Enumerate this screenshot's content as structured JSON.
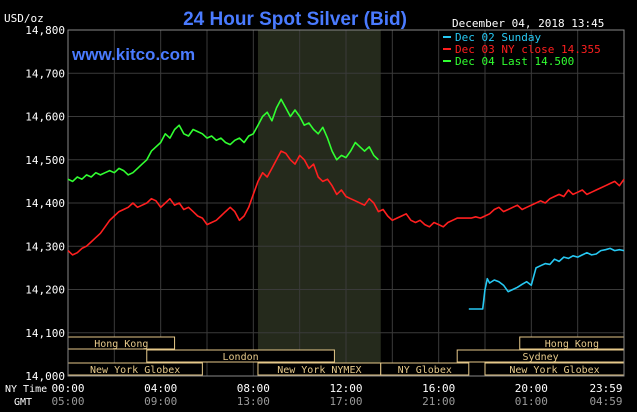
{
  "chart_data": {
    "type": "line",
    "title": "24 Hour Spot Silver (Bid)",
    "site": "www.kitco.com",
    "ylabel": "USD/oz",
    "timestamp": "December 04, 2018 13:45",
    "ylim": [
      14.0,
      14.8
    ],
    "y_ticks": [
      "14,800",
      "14,700",
      "14,600",
      "14,500",
      "14,400",
      "14,300",
      "14,200",
      "14,100",
      "14,000"
    ],
    "x_ticks_ny": [
      "00:00",
      "04:00",
      "08:00",
      "12:00",
      "16:00",
      "20:00",
      "23:59"
    ],
    "x_ticks_gmt": [
      "05:00",
      "09:00",
      "13:00",
      "17:00",
      "21:00",
      "01:00",
      "04:59"
    ],
    "row_label_ny": "NY Time",
    "row_label_gmt": "GMT",
    "colors": {
      "background": "#000000",
      "grid": "#3a3a3a",
      "highlight": "#252a1c",
      "axis_text": "#ffffff",
      "title": "#4a7bff",
      "sunday": "#27c8f2",
      "ny_close": "#ff1f1f",
      "last": "#31ff31",
      "session_box": "#e6c98a"
    },
    "legend": [
      {
        "label": "Dec 02 Sunday",
        "color": "#27c8f2"
      },
      {
        "label": "Dec 03 NY close 14.355",
        "color": "#ff1f1f"
      },
      {
        "label": "Dec 04 Last 14.500",
        "color": "#31ff31"
      }
    ],
    "highlight_range_hours": [
      8.2,
      13.5
    ],
    "sessions": [
      {
        "label": "Hong Kong",
        "start": 0,
        "end": 4.6,
        "row": 1
      },
      {
        "label": "London",
        "start": 3.4,
        "end": 11.5,
        "row": 2
      },
      {
        "label": "New York Globex",
        "start": 0,
        "end": 5.8,
        "row": 3
      },
      {
        "label": "New York NYMEX",
        "start": 8.2,
        "end": 13.5,
        "row": 3
      },
      {
        "label": "NY Globex",
        "start": 13.5,
        "end": 17.3,
        "row": 3
      },
      {
        "label": "Hong Kong",
        "start": 19.5,
        "end": 24,
        "row": 1
      },
      {
        "label": "Sydney",
        "start": 16.8,
        "end": 24,
        "row": 2
      },
      {
        "label": "New York Globex",
        "start": 18.0,
        "end": 24,
        "row": 3
      }
    ],
    "series": [
      {
        "name": "Dec 02 Sunday",
        "color": "#27c8f2",
        "x": [
          17.3,
          17.6,
          17.9,
          18.0,
          18.1,
          18.2,
          18.4,
          18.6,
          18.8,
          19.0,
          19.2,
          19.4,
          19.6,
          19.8,
          20.0,
          20.2,
          20.4,
          20.6,
          20.8,
          21.0,
          21.2,
          21.4,
          21.6,
          21.8,
          22.0,
          22.2,
          22.4,
          22.6,
          22.8,
          23.0,
          23.2,
          23.4,
          23.6,
          23.8,
          24.0
        ],
        "y": [
          14.155,
          14.155,
          14.155,
          14.2,
          14.225,
          14.215,
          14.222,
          14.218,
          14.21,
          14.195,
          14.2,
          14.205,
          14.212,
          14.218,
          14.21,
          14.25,
          14.255,
          14.26,
          14.258,
          14.27,
          14.265,
          14.275,
          14.272,
          14.278,
          14.275,
          14.28,
          14.285,
          14.28,
          14.282,
          14.29,
          14.292,
          14.295,
          14.29,
          14.292,
          14.29
        ]
      },
      {
        "name": "Dec 03 NY close",
        "color": "#ff1f1f",
        "x": [
          0.0,
          0.2,
          0.4,
          0.6,
          0.8,
          1.0,
          1.2,
          1.4,
          1.6,
          1.8,
          2.0,
          2.2,
          2.4,
          2.6,
          2.8,
          3.0,
          3.2,
          3.4,
          3.6,
          3.8,
          4.0,
          4.2,
          4.4,
          4.6,
          4.8,
          5.0,
          5.2,
          5.4,
          5.6,
          5.8,
          6.0,
          6.2,
          6.4,
          6.6,
          6.8,
          7.0,
          7.2,
          7.4,
          7.6,
          7.8,
          8.0,
          8.2,
          8.4,
          8.6,
          8.8,
          9.0,
          9.2,
          9.4,
          9.6,
          9.8,
          10.0,
          10.2,
          10.4,
          10.6,
          10.8,
          11.0,
          11.2,
          11.4,
          11.6,
          11.8,
          12.0,
          12.2,
          12.4,
          12.6,
          12.8,
          13.0,
          13.2,
          13.4,
          13.6,
          13.8,
          14.0,
          14.2,
          14.4,
          14.6,
          14.8,
          15.0,
          15.2,
          15.4,
          15.6,
          15.8,
          16.0,
          16.2,
          16.4,
          16.6,
          16.8,
          17.0,
          17.2,
          17.4,
          17.6,
          17.8,
          18.0,
          18.2,
          18.4,
          18.6,
          18.8,
          19.0,
          19.2,
          19.4,
          19.6,
          19.8,
          20.0,
          20.2,
          20.4,
          20.6,
          20.8,
          21.0,
          21.2,
          21.4,
          21.6,
          21.8,
          22.0,
          22.2,
          22.4,
          22.6,
          22.8,
          23.0,
          23.2,
          23.4,
          23.6,
          23.8,
          24.0
        ],
        "y": [
          14.29,
          14.28,
          14.285,
          14.295,
          14.3,
          14.31,
          14.32,
          14.33,
          14.345,
          14.36,
          14.37,
          14.38,
          14.385,
          14.39,
          14.4,
          14.39,
          14.395,
          14.4,
          14.41,
          14.405,
          14.39,
          14.4,
          14.41,
          14.395,
          14.4,
          14.385,
          14.39,
          14.38,
          14.37,
          14.365,
          14.35,
          14.355,
          14.36,
          14.37,
          14.38,
          14.39,
          14.38,
          14.36,
          14.37,
          14.39,
          14.42,
          14.45,
          14.47,
          14.46,
          14.48,
          14.5,
          14.52,
          14.515,
          14.5,
          14.49,
          14.51,
          14.5,
          14.48,
          14.49,
          14.46,
          14.45,
          14.455,
          14.44,
          14.42,
          14.43,
          14.415,
          14.41,
          14.405,
          14.4,
          14.395,
          14.41,
          14.4,
          14.38,
          14.385,
          14.37,
          14.36,
          14.365,
          14.37,
          14.375,
          14.36,
          14.355,
          14.36,
          14.35,
          14.345,
          14.355,
          14.35,
          14.345,
          14.355,
          14.36,
          14.365,
          14.365,
          14.365,
          14.365,
          14.368,
          14.365,
          14.37,
          14.375,
          14.385,
          14.39,
          14.38,
          14.385,
          14.39,
          14.395,
          14.385,
          14.39,
          14.395,
          14.4,
          14.405,
          14.4,
          14.41,
          14.415,
          14.42,
          14.415,
          14.43,
          14.42,
          14.425,
          14.43,
          14.42,
          14.425,
          14.43,
          14.435,
          14.44,
          14.445,
          14.45,
          14.44,
          14.455
        ]
      },
      {
        "name": "Dec 04 Last",
        "color": "#31ff31",
        "x": [
          0.0,
          0.2,
          0.4,
          0.6,
          0.8,
          1.0,
          1.2,
          1.4,
          1.6,
          1.8,
          2.0,
          2.2,
          2.4,
          2.6,
          2.8,
          3.0,
          3.2,
          3.4,
          3.6,
          3.8,
          4.0,
          4.2,
          4.4,
          4.6,
          4.8,
          5.0,
          5.2,
          5.4,
          5.6,
          5.8,
          6.0,
          6.2,
          6.4,
          6.6,
          6.8,
          7.0,
          7.2,
          7.4,
          7.6,
          7.8,
          8.0,
          8.2,
          8.4,
          8.6,
          8.8,
          9.0,
          9.2,
          9.4,
          9.6,
          9.8,
          10.0,
          10.2,
          10.4,
          10.6,
          10.8,
          11.0,
          11.2,
          11.4,
          11.6,
          11.8,
          12.0,
          12.2,
          12.4,
          12.6,
          12.8,
          13.0,
          13.2,
          13.4
        ],
        "y": [
          14.455,
          14.45,
          14.46,
          14.455,
          14.465,
          14.46,
          14.47,
          14.465,
          14.47,
          14.475,
          14.47,
          14.48,
          14.475,
          14.465,
          14.47,
          14.48,
          14.49,
          14.5,
          14.52,
          14.53,
          14.54,
          14.56,
          14.55,
          14.57,
          14.58,
          14.56,
          14.555,
          14.57,
          14.565,
          14.56,
          14.55,
          14.555,
          14.545,
          14.55,
          14.54,
          14.535,
          14.545,
          14.55,
          14.54,
          14.555,
          14.56,
          14.58,
          14.6,
          14.61,
          14.59,
          14.62,
          14.64,
          14.62,
          14.6,
          14.615,
          14.6,
          14.58,
          14.585,
          14.57,
          14.56,
          14.575,
          14.55,
          14.52,
          14.5,
          14.51,
          14.505,
          14.52,
          14.54,
          14.53,
          14.52,
          14.53,
          14.51,
          14.5
        ]
      }
    ]
  }
}
